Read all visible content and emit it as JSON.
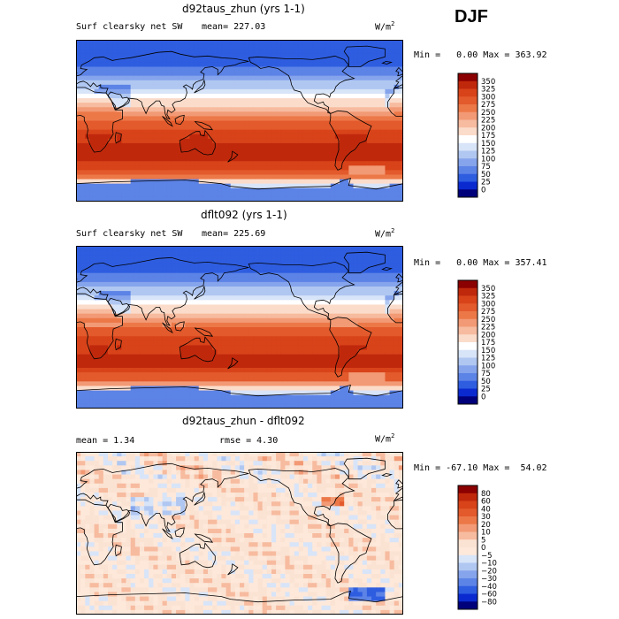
{
  "season": "DJF",
  "panels": [
    {
      "title": "d92taus_zhun (yrs 1-1)",
      "left_label": "Surf clearsky net SW",
      "mid_label": "mean= 227.03",
      "right_label": "",
      "units": "W/m",
      "units_sup": "2",
      "min_label": "Min =",
      "min_value": "0.00",
      "max_label": "Max =",
      "max_value": "363.92"
    },
    {
      "title": "dflt092 (yrs 1-1)",
      "left_label": "Surf clearsky net SW",
      "mid_label": "mean= 225.69",
      "right_label": "",
      "units": "W/m",
      "units_sup": "2",
      "min_label": "Min =",
      "min_value": "0.00",
      "max_label": "Max =",
      "max_value": "357.41"
    },
    {
      "title": "d92taus_zhun - dflt092",
      "left_label": "mean =   1.34",
      "mid_label": "rmse =   4.30",
      "right_label": "",
      "units": "W/m",
      "units_sup": "2",
      "min_label": "Min =",
      "min_value": "-67.10",
      "max_label": "Max =",
      "max_value": "54.02"
    }
  ],
  "chart_data": [
    {
      "type": "heatmap",
      "title": "d92taus_zhun (yrs 1-1)",
      "variable": "Surf clearsky net SW",
      "units": "W/m2",
      "mean": 227.03,
      "min": 0.0,
      "max": 363.92,
      "colorbar_levels": [
        350,
        325,
        300,
        275,
        250,
        225,
        200,
        175,
        150,
        125,
        100,
        75,
        50,
        25,
        0
      ],
      "colorbar_colors": [
        "#8b0000",
        "#c0280c",
        "#d8431a",
        "#e35a2c",
        "#ec7848",
        "#f29a75",
        "#f7bb9f",
        "#fbdccb",
        "#ffffff",
        "#d8e4f8",
        "#b0c7f1",
        "#85a4ec",
        "#5c83e6",
        "#2e5de0",
        "#0a2ad0",
        "#00007a"
      ],
      "latitude_profile": [
        {
          "lat": 80,
          "value": 30
        },
        {
          "lat": 60,
          "value": 45
        },
        {
          "lat": 40,
          "value": 110
        },
        {
          "lat": 20,
          "value": 210
        },
        {
          "lat": 0,
          "value": 280
        },
        {
          "lat": -20,
          "value": 320
        },
        {
          "lat": -40,
          "value": 340
        },
        {
          "lat": -60,
          "value": 280
        },
        {
          "lat": -80,
          "value": 50
        }
      ]
    },
    {
      "type": "heatmap",
      "title": "dflt092 (yrs 1-1)",
      "variable": "Surf clearsky net SW",
      "units": "W/m2",
      "mean": 225.69,
      "min": 0.0,
      "max": 357.41,
      "colorbar_levels": [
        350,
        325,
        300,
        275,
        250,
        225,
        200,
        175,
        150,
        125,
        100,
        75,
        50,
        25,
        0
      ],
      "colorbar_colors": [
        "#8b0000",
        "#c0280c",
        "#d8431a",
        "#e35a2c",
        "#ec7848",
        "#f29a75",
        "#f7bb9f",
        "#fbdccb",
        "#ffffff",
        "#d8e4f8",
        "#b0c7f1",
        "#85a4ec",
        "#5c83e6",
        "#2e5de0",
        "#0a2ad0",
        "#00007a"
      ],
      "latitude_profile": [
        {
          "lat": 80,
          "value": 30
        },
        {
          "lat": 60,
          "value": 45
        },
        {
          "lat": 40,
          "value": 110
        },
        {
          "lat": 20,
          "value": 208
        },
        {
          "lat": 0,
          "value": 278
        },
        {
          "lat": -20,
          "value": 318
        },
        {
          "lat": -40,
          "value": 336
        },
        {
          "lat": -60,
          "value": 275
        },
        {
          "lat": -80,
          "value": 50
        }
      ]
    },
    {
      "type": "heatmap",
      "title": "d92taus_zhun - dflt092",
      "units": "W/m2",
      "mean": 1.34,
      "rmse": 4.3,
      "min": -67.1,
      "max": 54.02,
      "colorbar_levels": [
        80,
        60,
        40,
        30,
        20,
        10,
        5,
        0,
        -5,
        -10,
        -20,
        -30,
        -40,
        -60,
        -80
      ],
      "colorbar_colors": [
        "#8b0000",
        "#c0280c",
        "#d8431a",
        "#e35a2c",
        "#ec7848",
        "#f29a75",
        "#f7bb9f",
        "#fbe3d3",
        "#fde8da",
        "#d8e4f8",
        "#b0c7f1",
        "#85a4ec",
        "#5c83e6",
        "#2e5de0",
        "#0a2ad0",
        "#00007a"
      ]
    }
  ]
}
